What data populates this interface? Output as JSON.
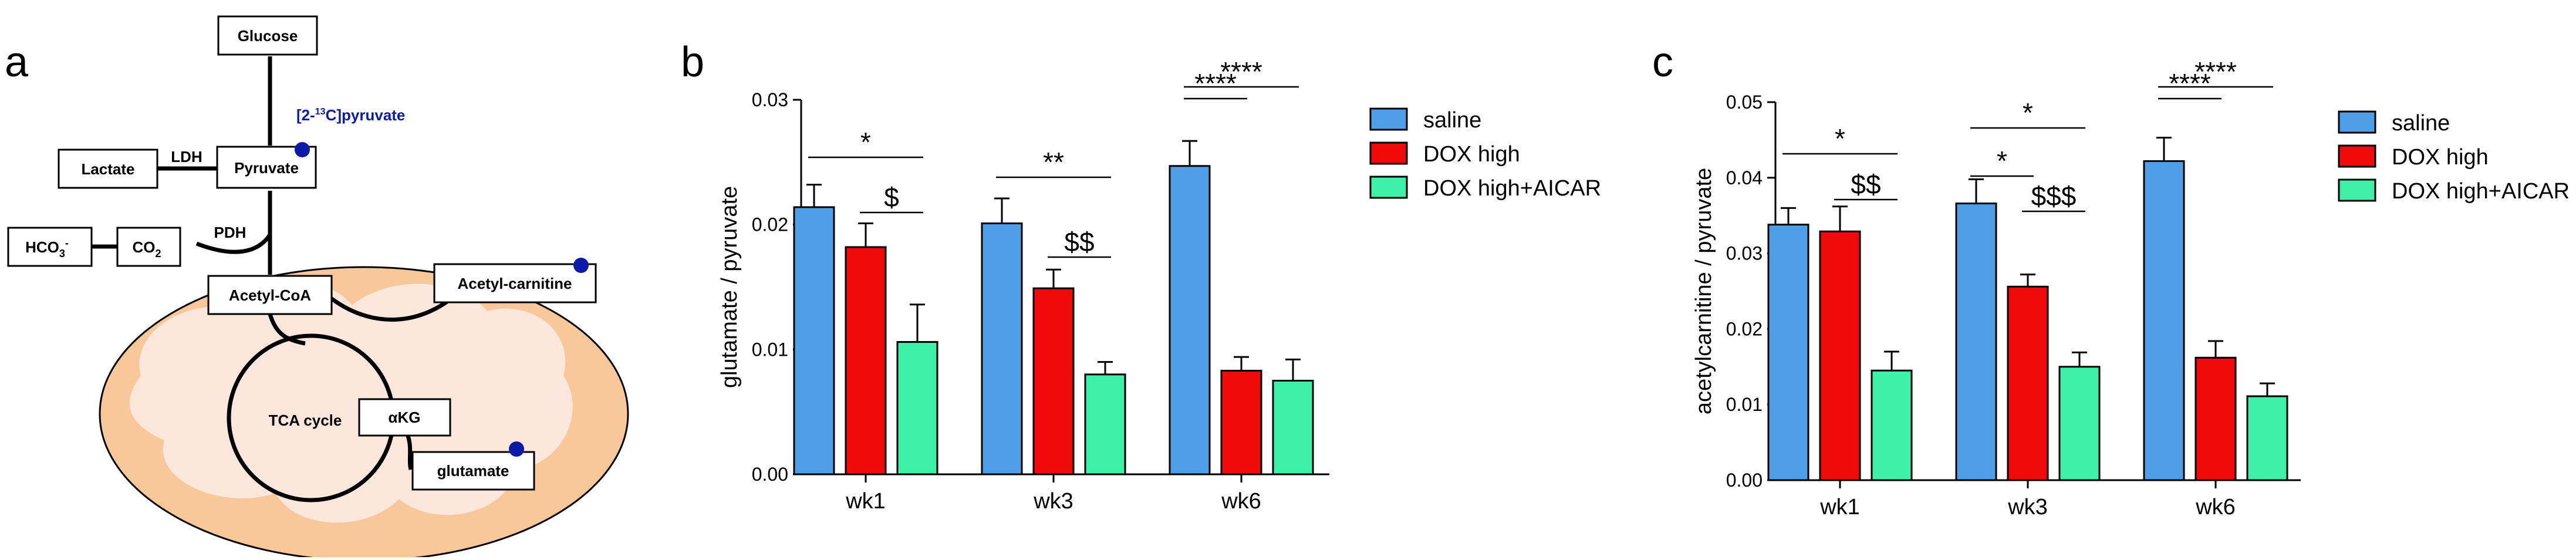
{
  "colors": {
    "saline": "#4f9ee8",
    "dox_high": "#f00a0a",
    "dox_high_aicar": "#3ef0a8",
    "tracer_dot": "#0c1aa8",
    "mito_outer": "#f9c89a",
    "mito_inner": "#fde7dc"
  },
  "panels": {
    "a": "a",
    "b": "b",
    "c": "c"
  },
  "diagram": {
    "glucose": "Glucose",
    "tracer_prefix": "[2-",
    "tracer_sup": "13",
    "tracer_suffix": "C]pyruvate",
    "lactate": "Lactate",
    "ldh": "LDH",
    "pyruvate": "Pyruvate",
    "pdh": "PDH",
    "hco3": "HCO",
    "hco3_sub": "3",
    "hco3_sup": "-",
    "co2": "CO",
    "co2_sub": "2",
    "acetyl_coa": "Acetyl-CoA",
    "acetyl_carnitine": "Acetyl-carnitine",
    "tca_cycle": "TCA cycle",
    "akg": "αKG",
    "glutamate": "glutamate"
  },
  "chart_data": [
    {
      "type": "bar",
      "panel": "b",
      "categories": [
        "wk1",
        "wk3",
        "wk6"
      ],
      "ylabel": "glutamate / pyruvate",
      "ylim": [
        0,
        0.03
      ],
      "yticks": [
        "0.00",
        "0.01",
        "0.02",
        "0.03"
      ],
      "series": [
        {
          "name": "saline",
          "values": [
            0.0214,
            0.0201,
            0.0247
          ],
          "errors": [
            0.0018,
            0.002,
            0.002
          ]
        },
        {
          "name": "DOX high",
          "values": [
            0.0182,
            0.0149,
            0.0083
          ],
          "errors": [
            0.0019,
            0.0015,
            0.0011
          ]
        },
        {
          "name": "DOX high+AICAR",
          "values": [
            0.0106,
            0.008,
            0.0075
          ],
          "errors": [
            0.003,
            0.001,
            0.0017
          ]
        }
      ],
      "annotations": [
        {
          "text": "*",
          "group": 0,
          "from": 0,
          "to": 2
        },
        {
          "text": "$",
          "group": 0,
          "from": 1,
          "to": 2
        },
        {
          "text": "**",
          "group": 1,
          "from": 0,
          "to": 2
        },
        {
          "text": "$$",
          "group": 1,
          "from": 1,
          "to": 2
        },
        {
          "text": "****",
          "group": 2,
          "from": 0,
          "to": 1
        },
        {
          "text": "****",
          "group": 2,
          "from": 0,
          "to": 2
        }
      ],
      "legend": [
        "saline",
        "DOX high",
        "DOX high+AICAR"
      ]
    },
    {
      "type": "bar",
      "panel": "c",
      "categories": [
        "wk1",
        "wk3",
        "wk6"
      ],
      "ylabel": "acetylcarnitine / pyruvate",
      "ylim": [
        0,
        0.05
      ],
      "yticks": [
        "0.00",
        "0.01",
        "0.02",
        "0.03",
        "0.04",
        "0.05"
      ],
      "series": [
        {
          "name": "saline",
          "values": [
            0.0338,
            0.0366,
            0.0422
          ],
          "errors": [
            0.0022,
            0.0032,
            0.0031
          ]
        },
        {
          "name": "DOX high",
          "values": [
            0.0329,
            0.0256,
            0.0162
          ],
          "errors": [
            0.0033,
            0.0016,
            0.0022
          ]
        },
        {
          "name": "DOX high+AICAR",
          "values": [
            0.0145,
            0.015,
            0.0111
          ],
          "errors": [
            0.0025,
            0.0019,
            0.0017
          ]
        }
      ],
      "annotations": [
        {
          "text": "*",
          "group": 0,
          "from": 0,
          "to": 2
        },
        {
          "text": "$$",
          "group": 0,
          "from": 1,
          "to": 2
        },
        {
          "text": "*",
          "group": 1,
          "from": 0,
          "to": 1
        },
        {
          "text": "*",
          "group": 1,
          "from": 0,
          "to": 2
        },
        {
          "text": "$$$",
          "group": 1,
          "from": 1,
          "to": 2
        },
        {
          "text": "****",
          "group": 2,
          "from": 0,
          "to": 1
        },
        {
          "text": "****",
          "group": 2,
          "from": 0,
          "to": 2
        }
      ],
      "legend": [
        "saline",
        "DOX high",
        "DOX high+AICAR"
      ]
    }
  ]
}
